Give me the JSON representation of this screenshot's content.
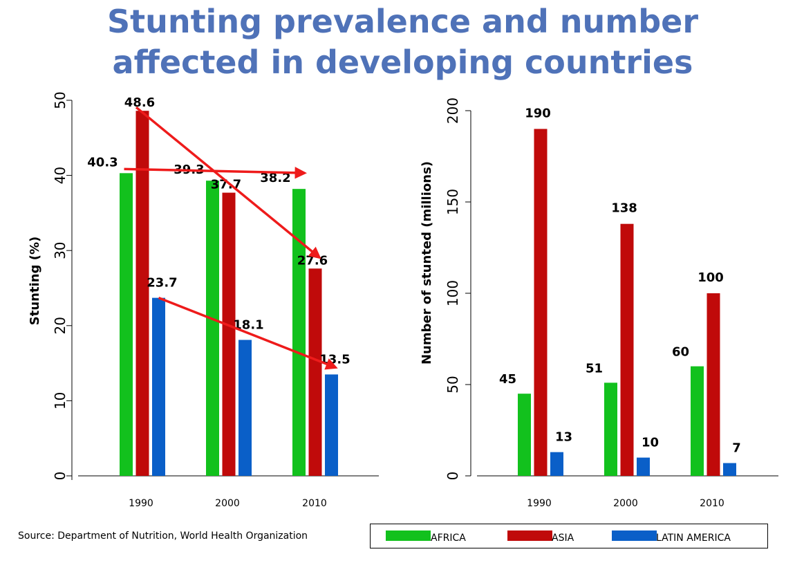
{
  "title": {
    "line1": "Stunting prevalence and number",
    "line2": "affected in developing countries"
  },
  "source": "Source: Department of Nutrition, World Health Organization",
  "legend": [
    {
      "label": "AFRICA",
      "color": "#12C11D"
    },
    {
      "label": "ASIA",
      "color": "#C00A0A"
    },
    {
      "label": "LATIN AMERICA",
      "color": "#0A5FC8"
    }
  ],
  "chart_data": [
    {
      "type": "bar",
      "categories": [
        "1990",
        "2000",
        "2010"
      ],
      "series": [
        {
          "name": "AFRICA",
          "color": "#12C11D",
          "values": [
            40.3,
            39.3,
            38.2
          ],
          "labels": [
            "40.3",
            "39.3",
            "38.2"
          ]
        },
        {
          "name": "ASIA",
          "color": "#C00A0A",
          "values": [
            48.6,
            37.7,
            27.6
          ],
          "labels": [
            "48.6",
            "37.7",
            "27.6"
          ]
        },
        {
          "name": "LATIN AMERICA",
          "color": "#0A5FC8",
          "values": [
            23.7,
            18.1,
            13.5
          ],
          "labels": [
            "23.7",
            "18.1",
            "13.5"
          ]
        }
      ],
      "ylabel": "Stunting (%)",
      "xlabel": "",
      "ylim": [
        0,
        50
      ],
      "yticks": [
        "0",
        "10",
        "20",
        "30",
        "40",
        "50"
      ],
      "trend_arrows": [
        {
          "series": "AFRICA",
          "from": "1990",
          "to": "2010",
          "color": "#EE1B1B"
        },
        {
          "series": "ASIA",
          "from": "1990",
          "to": "2010",
          "color": "#EE1B1B"
        },
        {
          "series": "LATIN AMERICA",
          "from": "1990",
          "to": "2010",
          "color": "#EE1B1B"
        }
      ],
      "grid": false
    },
    {
      "type": "bar",
      "categories": [
        "1990",
        "2000",
        "2010"
      ],
      "series": [
        {
          "name": "AFRICA",
          "color": "#12C11D",
          "values": [
            45,
            51,
            60
          ],
          "labels": [
            "45",
            "51",
            "60"
          ]
        },
        {
          "name": "ASIA",
          "color": "#C00A0A",
          "values": [
            190,
            138,
            100
          ],
          "labels": [
            "190",
            "138",
            "100"
          ]
        },
        {
          "name": "LATIN AMERICA",
          "color": "#0A5FC8",
          "values": [
            13,
            10,
            7
          ],
          "labels": [
            "13",
            "10",
            "7"
          ]
        }
      ],
      "ylabel": "Number of stunted (millions)",
      "xlabel": "",
      "ylim": [
        0,
        200
      ],
      "yticks": [
        "0",
        "50",
        "100",
        "150",
        "200"
      ],
      "grid": false
    }
  ]
}
